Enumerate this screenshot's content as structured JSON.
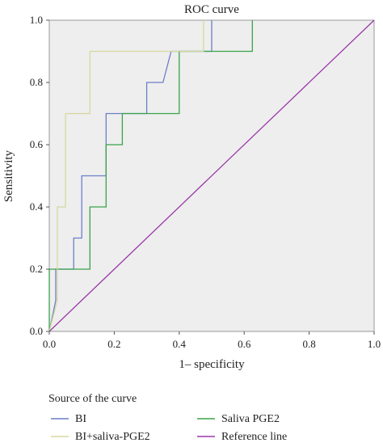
{
  "chart_data": {
    "type": "line",
    "title": "ROC curve",
    "xlabel": "1– specificity",
    "ylabel": "Sensitivity",
    "xlim": [
      0,
      1
    ],
    "ylim": [
      0,
      1
    ],
    "xticks": [
      "0.0",
      "0.2",
      "0.4",
      "0.6",
      "0.8",
      "1.0"
    ],
    "yticks": [
      "0.0",
      "0.2",
      "0.4",
      "0.6",
      "0.8",
      "1.0"
    ],
    "grid": false,
    "plot_background": "#eeeeee",
    "legend": {
      "title": "Source of the curve",
      "placement": "bottom"
    },
    "series": [
      {
        "name": "BI",
        "color": "#6b7fc8",
        "x": [
          0,
          0.02,
          0.02,
          0.075,
          0.075,
          0.1,
          0.1,
          0.175,
          0.175,
          0.3,
          0.3,
          0.35,
          0.375,
          0.5,
          0.5
        ],
        "y": [
          0,
          0.1,
          0.2,
          0.2,
          0.3,
          0.3,
          0.5,
          0.5,
          0.7,
          0.7,
          0.8,
          0.8,
          0.9,
          0.9,
          1.0
        ]
      },
      {
        "name": "Saliva PGE2",
        "color": "#3aa34a",
        "x": [
          0,
          0,
          0.125,
          0.125,
          0.175,
          0.175,
          0.225,
          0.225,
          0.4,
          0.4,
          0.625,
          0.625
        ],
        "y": [
          0,
          0.2,
          0.2,
          0.4,
          0.4,
          0.6,
          0.6,
          0.7,
          0.7,
          0.9,
          0.9,
          1.0
        ]
      },
      {
        "name": "BI+saliva-PGE2",
        "color": "#d6d8a0",
        "x": [
          0,
          0.025,
          0.025,
          0.05,
          0.05,
          0.125,
          0.125,
          0.475,
          0.475
        ],
        "y": [
          0,
          0.1,
          0.4,
          0.4,
          0.7,
          0.7,
          0.9,
          0.9,
          1.0
        ]
      },
      {
        "name": "Reference line",
        "color": "#9a3aa8",
        "x": [
          0,
          1
        ],
        "y": [
          0,
          1
        ]
      }
    ]
  }
}
